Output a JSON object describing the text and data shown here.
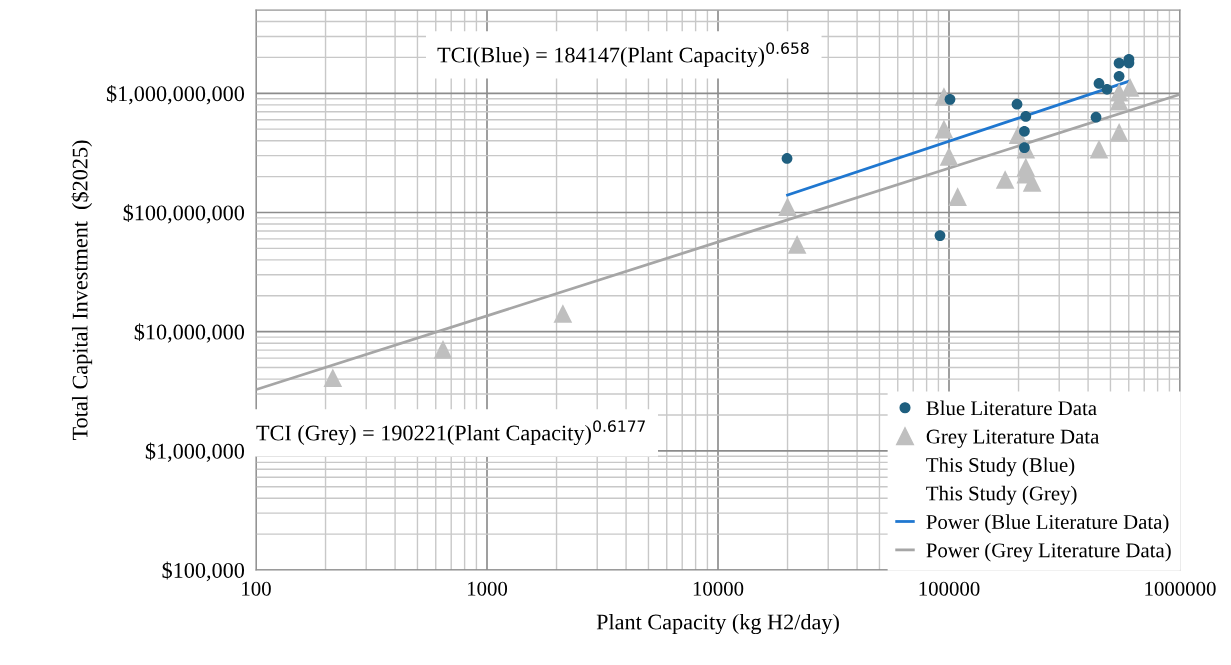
{
  "chart_data": {
    "type": "scatter",
    "xlabel": "Plant Capacity (kg H2/day)",
    "ylabel": "Total Capital Investment  ($2025)",
    "log": "xy",
    "grid": true,
    "legend": "bottom right",
    "xlim": [
      100,
      1000000
    ],
    "xticks": [
      100,
      1000,
      10000,
      100000,
      1000000
    ],
    "ylim": [
      100000,
      5000000000
    ],
    "yticks": [
      {
        "value": 100000,
        "label": "$100,000"
      },
      {
        "value": 1000000,
        "label": "$1,000,000"
      },
      {
        "value": 10000000,
        "label": "$10,000,000"
      },
      {
        "value": 100000000,
        "label": "$100,000,000"
      },
      {
        "value": 1000000000,
        "label": "$1,000,000,000"
      }
    ],
    "annotations": [
      "TCI(Blue) = 184147(Plant Capacity)$^{0.658}$",
      "TCI (Grey) = 190221(Plant Capacity)$^{0.6177}$"
    ],
    "series": [
      {
        "name": "Blue Literature Data",
        "marker": "circle",
        "color": "#1f5f7f",
        "x": [
          19900,
          91400,
          101000,
          197000,
          215000,
          212000,
          212000,
          446000,
          483000,
          433000,
          545000,
          545000,
          601000,
          601000
        ],
        "values": [
          284000000,
          64000000,
          890000000,
          810000000,
          640000000,
          480000000,
          350000000,
          1210000000,
          1080000000,
          630000000,
          1390000000,
          1790000000,
          1930000000,
          1800000000
        ]
      },
      {
        "name": "Grey Literature Data",
        "marker": "triangle",
        "color": "#bfbfbf",
        "x": [
          215,
          645,
          2130,
          20000,
          22000,
          95100,
          95100,
          100000,
          109000,
          175000,
          199000,
          215000,
          215000,
          215000,
          229000,
          446000,
          545000,
          545000,
          545000,
          608000
        ],
        "values": [
          4100000,
          7100000,
          14200000,
          112000000,
          54000000,
          940000000,
          500000000,
          296000000,
          136000000,
          189000000,
          450000000,
          340000000,
          240000000,
          210000000,
          179000000,
          340000000,
          470000000,
          860000000,
          1020000000,
          1120000000
        ]
      },
      {
        "name": "This Study (Blue)",
        "marker": "none"
      },
      {
        "name": "This Study (Grey)",
        "marker": "none"
      },
      {
        "name": "Power (Blue Literature Data)",
        "type": "line",
        "marker": "none",
        "color": "#1f77d0",
        "x": [
          20000,
          600000
        ],
        "values": [
          140000000,
          1260000000
        ]
      },
      {
        "name": "Power (Grey Literature Data)",
        "type": "line",
        "marker": "none",
        "color": "#a6a6a6",
        "x": [
          100,
          1000000
        ],
        "values": [
          3260000,
          980000000
        ]
      }
    ]
  }
}
